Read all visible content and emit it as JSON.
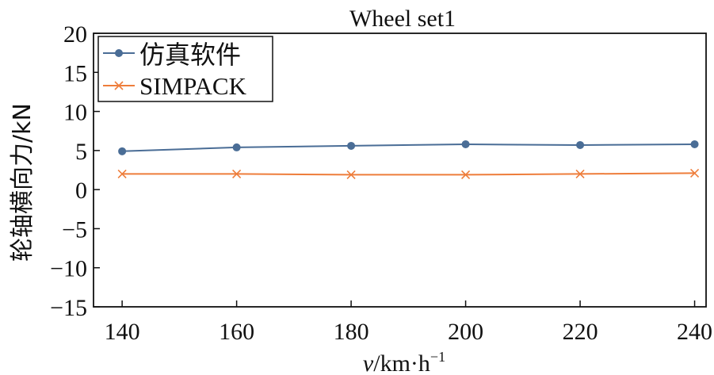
{
  "chart_data": {
    "type": "line",
    "title": "Wheel set1",
    "xlabel_var": "v",
    "xlabel_units": "/km·h",
    "xlabel_exp": "−1",
    "ylabel": "轮轴横向力/kN",
    "xlim": [
      135,
      242
    ],
    "ylim": [
      -15,
      20
    ],
    "xticks": [
      140,
      160,
      180,
      200,
      220,
      240
    ],
    "yticks": [
      20,
      15,
      10,
      5,
      0,
      -5,
      -10,
      -15
    ],
    "ytick_labels": [
      "20",
      "15",
      "10",
      "5",
      "0",
      "−5",
      "−10",
      "−15"
    ],
    "x": [
      140,
      160,
      180,
      200,
      220,
      240
    ],
    "series": [
      {
        "name": "仿真软件",
        "values": [
          4.9,
          5.4,
          5.6,
          5.8,
          5.7,
          5.8
        ],
        "color": "#4a6d96",
        "marker": "circle"
      },
      {
        "name": "SIMPACK",
        "values": [
          2.0,
          2.0,
          1.9,
          1.9,
          2.0,
          2.1
        ],
        "color": "#ee7d3b",
        "marker": "x"
      }
    ],
    "legend_position": "top-left",
    "grid": false
  }
}
